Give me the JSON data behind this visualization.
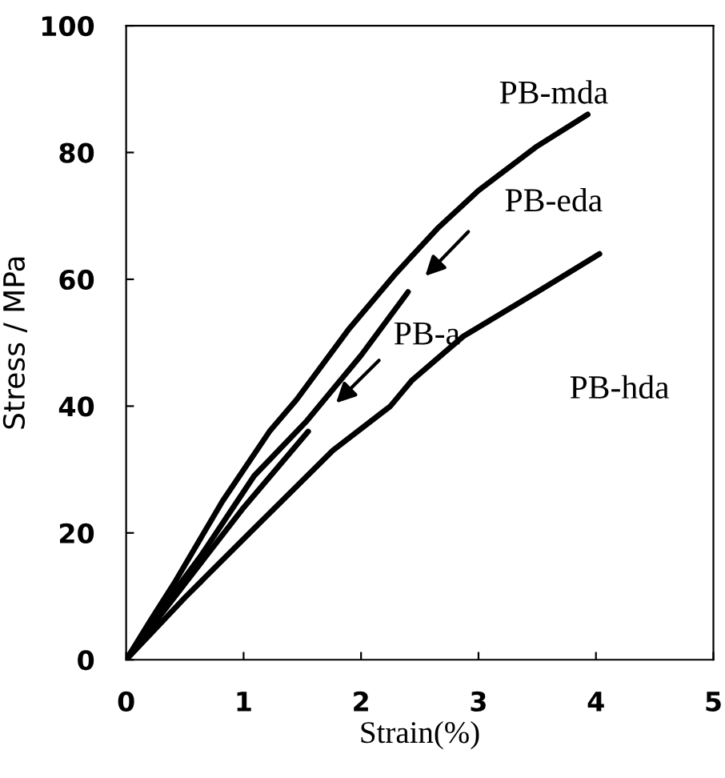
{
  "chart_data": {
    "type": "line",
    "xlabel": "Strain(%)",
    "ylabel": "Stress / MPa",
    "xlim": [
      0,
      5
    ],
    "ylim": [
      0,
      100
    ],
    "xticks": [
      0,
      1,
      2,
      3,
      4,
      5
    ],
    "yticks": [
      0,
      20,
      40,
      60,
      80,
      100
    ],
    "grid": false,
    "legend": false,
    "marker": "none",
    "line_style": "solid",
    "series": [
      {
        "color": "#000000",
        "x": [
          0,
          0.2,
          0.42,
          0.82,
          1.22,
          1.45,
          1.89,
          2.3,
          2.65,
          3.0,
          3.5,
          3.93
        ],
        "values": [
          0,
          6,
          12.4,
          25,
          36,
          41,
          52,
          61,
          68,
          74,
          81,
          86
        ]
      },
      {
        "color": "#000000",
        "x": [
          0,
          0.3,
          0.64,
          1.09,
          1.53,
          2.0,
          2.4
        ],
        "values": [
          0,
          8,
          16.5,
          29,
          37.5,
          48,
          58
        ]
      },
      {
        "color": "#000000",
        "x": [
          0,
          0.5,
          1.0,
          1.55
        ],
        "values": [
          0,
          12,
          24,
          36
        ]
      },
      {
        "color": "#000000",
        "x": [
          0,
          0.5,
          1.09,
          1.76,
          2.25,
          2.43,
          2.87,
          3.5,
          4.03
        ],
        "values": [
          0,
          9.8,
          20.7,
          33,
          40,
          44,
          51,
          58,
          64
        ]
      }
    ],
    "annotations": [
      "PB-mda",
      "PB-eda",
      "PB-a",
      "PB-hda"
    ]
  }
}
